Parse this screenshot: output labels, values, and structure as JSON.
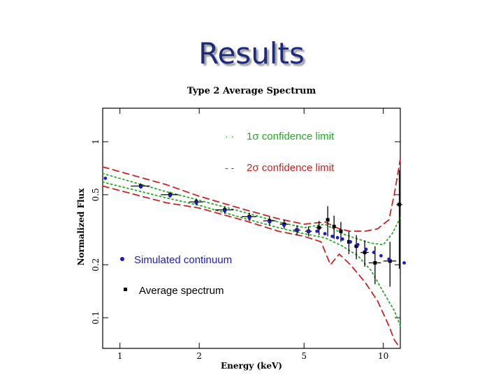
{
  "slide": {
    "title": "Results"
  },
  "chart_data": {
    "type": "scatter",
    "title": "Type 2 Average Spectrum",
    "xlabel": "Energy (keV)",
    "ylabel": "Normalized Flux",
    "xscale": "log",
    "yscale": "log",
    "xlim": [
      0.86,
      11.6
    ],
    "ylim": [
      0.067,
      1.55
    ],
    "x_ticks": [
      1,
      2,
      5,
      10
    ],
    "x_tick_labels": [
      "1",
      "2",
      "5",
      "10"
    ],
    "y_ticks": [
      0.1,
      0.2,
      0.5,
      1
    ],
    "y_tick_labels": [
      "0.1",
      "0.2",
      "0.5",
      "1"
    ],
    "legend": {
      "one_sigma": {
        "symbol": "· ·",
        "label": "1σ confidence limit",
        "color": "#22aa22"
      },
      "two_sigma": {
        "symbol": "- -",
        "label": "2σ confidence limit",
        "color": "#cc2222"
      },
      "simulated": {
        "label": "Simulated continuum",
        "color": "#1a1ad0"
      },
      "average": {
        "label": "Average spectrum",
        "color": "#000000"
      }
    },
    "series": [
      {
        "name": "Average spectrum",
        "marker": "square",
        "color": "#000000",
        "points": [
          {
            "x": 1.2,
            "y": 0.56,
            "xerr": 0.1,
            "yerr": 0.02
          },
          {
            "x": 1.55,
            "y": 0.5,
            "xerr": 0.12,
            "yerr": 0.02
          },
          {
            "x": 1.95,
            "y": 0.455,
            "xerr": 0.12,
            "yerr": 0.02
          },
          {
            "x": 2.5,
            "y": 0.41,
            "xerr": 0.2,
            "yerr": 0.02
          },
          {
            "x": 3.1,
            "y": 0.375,
            "xerr": 0.2,
            "yerr": 0.02
          },
          {
            "x": 3.7,
            "y": 0.355,
            "xerr": 0.2,
            "yerr": 0.02
          },
          {
            "x": 4.2,
            "y": 0.34,
            "xerr": 0.15,
            "yerr": 0.02
          },
          {
            "x": 4.7,
            "y": 0.315,
            "xerr": 0.15,
            "yerr": 0.02
          },
          {
            "x": 5.2,
            "y": 0.31,
            "xerr": 0.15,
            "yerr": 0.02
          },
          {
            "x": 5.7,
            "y": 0.325,
            "xerr": 0.15,
            "yerr": 0.03
          },
          {
            "x": 6.15,
            "y": 0.36,
            "xerr": 0.08,
            "yerr": 0.07
          },
          {
            "x": 6.5,
            "y": 0.33,
            "xerr": 0.08,
            "yerr": 0.05
          },
          {
            "x": 6.9,
            "y": 0.31,
            "xerr": 0.08,
            "yerr": 0.04
          },
          {
            "x": 7.4,
            "y": 0.27,
            "xerr": 0.1,
            "yerr": 0.04
          },
          {
            "x": 7.9,
            "y": 0.255,
            "xerr": 0.15,
            "yerr": 0.04
          },
          {
            "x": 8.5,
            "y": 0.235,
            "xerr": 0.3,
            "yerr": 0.04
          },
          {
            "x": 9.3,
            "y": 0.205,
            "xerr": 0.5,
            "yerr": 0.05
          },
          {
            "x": 10.6,
            "y": 0.21,
            "xerr": 0.6,
            "yerr": 0.06
          },
          {
            "x": 11.5,
            "y": 0.44,
            "xerr": 0.3,
            "yerr": 0.25
          }
        ]
      },
      {
        "name": "Simulated continuum",
        "marker": "circle",
        "color": "#1a1ad0",
        "points": [
          {
            "x": 0.88,
            "y": 0.62
          },
          {
            "x": 1.2,
            "y": 0.555
          },
          {
            "x": 1.55,
            "y": 0.495
          },
          {
            "x": 1.95,
            "y": 0.45
          },
          {
            "x": 2.5,
            "y": 0.405
          },
          {
            "x": 3.1,
            "y": 0.37
          },
          {
            "x": 3.7,
            "y": 0.35
          },
          {
            "x": 4.2,
            "y": 0.335
          },
          {
            "x": 4.7,
            "y": 0.315
          },
          {
            "x": 5.2,
            "y": 0.31
          },
          {
            "x": 5.6,
            "y": 0.31
          },
          {
            "x": 6.0,
            "y": 0.3
          },
          {
            "x": 6.4,
            "y": 0.29
          },
          {
            "x": 6.7,
            "y": 0.285
          },
          {
            "x": 7.0,
            "y": 0.28
          },
          {
            "x": 7.5,
            "y": 0.27
          },
          {
            "x": 8.0,
            "y": 0.26
          },
          {
            "x": 8.6,
            "y": 0.245
          },
          {
            "x": 9.2,
            "y": 0.235
          },
          {
            "x": 9.8,
            "y": 0.225
          },
          {
            "x": 10.5,
            "y": 0.215
          },
          {
            "x": 12.0,
            "y": 0.205
          }
        ]
      },
      {
        "name": "1σ confidence limit upper",
        "line": "dotted",
        "color": "#22aa22",
        "points": [
          {
            "x": 0.86,
            "y": 0.66
          },
          {
            "x": 1.5,
            "y": 0.52
          },
          {
            "x": 2.0,
            "y": 0.465
          },
          {
            "x": 3.0,
            "y": 0.395
          },
          {
            "x": 4.0,
            "y": 0.35
          },
          {
            "x": 5.0,
            "y": 0.325
          },
          {
            "x": 6.0,
            "y": 0.34
          },
          {
            "x": 7.0,
            "y": 0.3
          },
          {
            "x": 8.0,
            "y": 0.28
          },
          {
            "x": 9.0,
            "y": 0.265
          },
          {
            "x": 10.0,
            "y": 0.26
          },
          {
            "x": 10.8,
            "y": 0.3
          },
          {
            "x": 11.6,
            "y": 0.37
          }
        ]
      },
      {
        "name": "1σ confidence limit lower",
        "line": "dotted",
        "color": "#22aa22",
        "points": [
          {
            "x": 0.86,
            "y": 0.59
          },
          {
            "x": 1.5,
            "y": 0.48
          },
          {
            "x": 2.0,
            "y": 0.435
          },
          {
            "x": 3.0,
            "y": 0.365
          },
          {
            "x": 4.0,
            "y": 0.325
          },
          {
            "x": 5.0,
            "y": 0.3
          },
          {
            "x": 6.0,
            "y": 0.285
          },
          {
            "x": 7.0,
            "y": 0.255
          },
          {
            "x": 8.0,
            "y": 0.225
          },
          {
            "x": 9.0,
            "y": 0.185
          },
          {
            "x": 10.0,
            "y": 0.14
          },
          {
            "x": 11.0,
            "y": 0.11
          },
          {
            "x": 11.6,
            "y": 0.09
          }
        ]
      },
      {
        "name": "2σ confidence limit upper",
        "line": "dashed",
        "color": "#cc2222",
        "points": [
          {
            "x": 0.86,
            "y": 0.72
          },
          {
            "x": 1.5,
            "y": 0.57
          },
          {
            "x": 2.0,
            "y": 0.49
          },
          {
            "x": 3.0,
            "y": 0.41
          },
          {
            "x": 4.0,
            "y": 0.365
          },
          {
            "x": 5.0,
            "y": 0.34
          },
          {
            "x": 6.0,
            "y": 0.35
          },
          {
            "x": 6.8,
            "y": 0.32
          },
          {
            "x": 7.5,
            "y": 0.31
          },
          {
            "x": 8.5,
            "y": 0.31
          },
          {
            "x": 9.5,
            "y": 0.32
          },
          {
            "x": 10.5,
            "y": 0.36
          },
          {
            "x": 11.0,
            "y": 0.5
          },
          {
            "x": 11.6,
            "y": 0.8
          }
        ]
      },
      {
        "name": "2σ confidence limit lower",
        "line": "dashed",
        "color": "#cc2222",
        "points": [
          {
            "x": 0.86,
            "y": 0.56
          },
          {
            "x": 1.5,
            "y": 0.45
          },
          {
            "x": 2.0,
            "y": 0.42
          },
          {
            "x": 3.0,
            "y": 0.355
          },
          {
            "x": 4.0,
            "y": 0.31
          },
          {
            "x": 5.0,
            "y": 0.29
          },
          {
            "x": 5.8,
            "y": 0.27
          },
          {
            "x": 6.3,
            "y": 0.2
          },
          {
            "x": 6.8,
            "y": 0.23
          },
          {
            "x": 7.5,
            "y": 0.2
          },
          {
            "x": 8.5,
            "y": 0.16
          },
          {
            "x": 9.5,
            "y": 0.125
          },
          {
            "x": 10.5,
            "y": 0.09
          },
          {
            "x": 11.0,
            "y": 0.075
          },
          {
            "x": 11.6,
            "y": 0.067
          }
        ]
      }
    ]
  }
}
